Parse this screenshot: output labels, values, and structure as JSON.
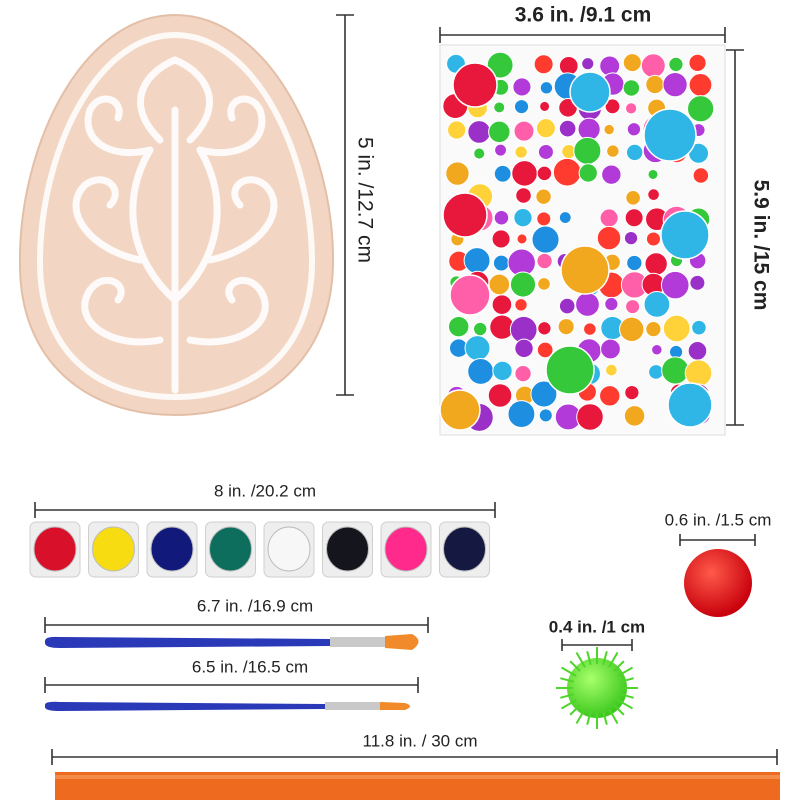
{
  "egg": {
    "height": "5 in. /12.7 cm"
  },
  "gem_sheet": {
    "width": "3.6 in. /9.1 cm",
    "height": "5.9 in. /15 cm"
  },
  "paint_strip": {
    "width": "8 in. /20.2 cm"
  },
  "brushes": [
    {
      "length": "6.7 in. /16.9 cm"
    },
    {
      "length": "6.5 in. /16.5 cm"
    }
  ],
  "pompoms": [
    {
      "diameter": "0.6 in. /1.5 cm"
    },
    {
      "diameter": "0.4 in. /1 cm"
    }
  ],
  "ribbon": {
    "length": "11.8 in. / 30 cm"
  }
}
